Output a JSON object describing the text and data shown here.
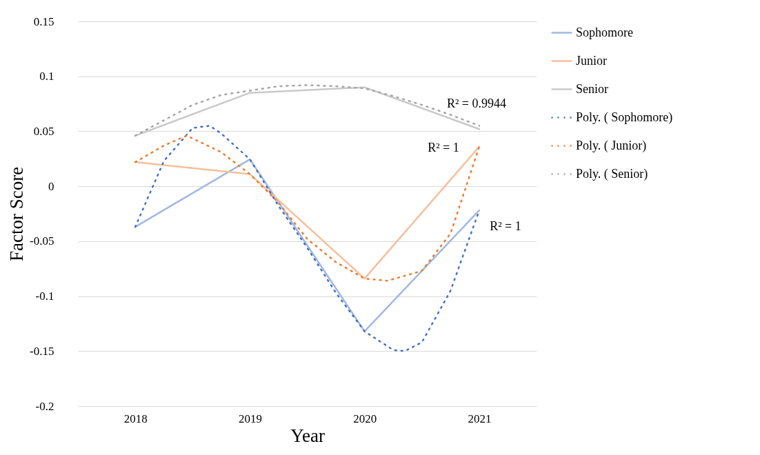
{
  "chart_data": {
    "type": "line",
    "xlabel": "Year",
    "ylabel": "Factor Score",
    "xlim": [
      2017.5,
      2021.5
    ],
    "xticks": [
      2018,
      2019,
      2020,
      2021
    ],
    "ylim": [
      -0.2,
      0.15
    ],
    "yticks": [
      -0.2,
      -0.15,
      -0.1,
      -0.05,
      0,
      0.05,
      0.1,
      0.15
    ],
    "annotations": [
      "R² = 0.9944",
      "R² = 1",
      "R² = 1"
    ],
    "grid": "y",
    "legend": "right",
    "marker": "none",
    "series": [
      {
        "name": "Sophomore",
        "color": "#a0b8e2",
        "line_style": "solid",
        "x": [
          2018,
          2019,
          2020,
          2021
        ],
        "values": [
          -0.037,
          0.0245,
          -0.132,
          -0.022
        ]
      },
      {
        "name": "Junior",
        "color": "#f5bf9a",
        "line_style": "solid",
        "x": [
          2018,
          2019,
          2020,
          2021
        ],
        "values": [
          0.022,
          0.011,
          -0.084,
          0.036
        ]
      },
      {
        "name": "Senior",
        "color": "#c9c9c9",
        "line_style": "solid",
        "x": [
          2018,
          2019,
          2020,
          2021
        ],
        "values": [
          0.046,
          0.085,
          0.09,
          0.052
        ]
      },
      {
        "name": "Poly. ( Sophomore)",
        "color": "#4472c4",
        "line_style": "dotted",
        "x": [
          2018,
          2018.25,
          2018.5,
          2018.65,
          2018.75,
          2019,
          2019.25,
          2019.5,
          2019.75,
          2020,
          2020.25,
          2020.35,
          2020.5,
          2020.75,
          2021
        ],
        "values": [
          -0.037,
          0.023,
          0.053,
          0.055,
          0.048,
          0.0245,
          -0.018,
          -0.056,
          -0.097,
          -0.132,
          -0.149,
          -0.15,
          -0.142,
          -0.095,
          -0.022
        ]
      },
      {
        "name": "Poly. ( Junior)",
        "color": "#ed7d31",
        "line_style": "dotted",
        "x": [
          2018,
          2018.25,
          2018.45,
          2018.75,
          2019,
          2019.25,
          2019.5,
          2019.75,
          2020,
          2020.2,
          2020.5,
          2020.75,
          2021
        ],
        "values": [
          0.022,
          0.037,
          0.046,
          0.031,
          0.011,
          -0.015,
          -0.048,
          -0.069,
          -0.084,
          -0.086,
          -0.077,
          -0.043,
          0.036
        ]
      },
      {
        "name": "Poly. ( Senior)",
        "color": "#a5a5a5",
        "line_style": "dotted",
        "x": [
          2018,
          2018.25,
          2018.5,
          2018.75,
          2019,
          2019.25,
          2019.5,
          2019.75,
          2020,
          2020.25,
          2020.5,
          2020.75,
          2021
        ],
        "values": [
          0.046,
          0.06,
          0.074,
          0.083,
          0.087,
          0.091,
          0.092,
          0.091,
          0.089,
          0.082,
          0.074,
          0.065,
          0.055
        ]
      }
    ]
  }
}
